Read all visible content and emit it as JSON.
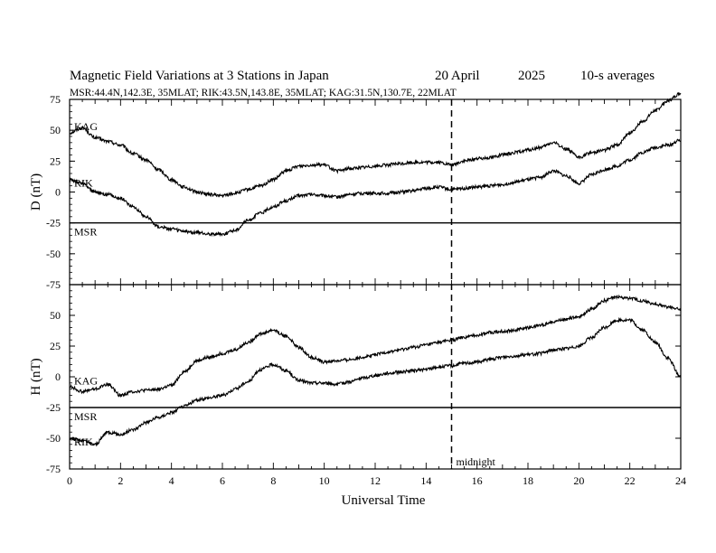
{
  "chart_data": {
    "type": "line",
    "title": "Magnetic Field Variations at 3 Stations in Japan",
    "date": "20 April",
    "year": "2025",
    "averaging": "10-s averages",
    "subtitle": "MSR:44.4N,142.3E, 35MLAT;  RIK:43.5N,143.8E, 35MLAT;  KAG:31.5N,130.7E, 22MLAT",
    "xlabel": "Universal Time",
    "xlim": [
      0,
      24
    ],
    "x_ticks": [
      0,
      2,
      4,
      6,
      8,
      10,
      12,
      14,
      16,
      18,
      20,
      22,
      24
    ],
    "annotation": {
      "x": 15,
      "label": "midnight"
    },
    "panels": [
      {
        "ylabel": "D (nT)",
        "ylim": [
          -75,
          75
        ],
        "y_ticks": [
          75,
          50,
          25,
          0,
          -25,
          -50,
          -75
        ],
        "series": [
          {
            "name": "KAG",
            "x": [
              0,
              0.5,
              1,
              1.5,
              2,
              2.5,
              3,
              3.5,
              4,
              4.5,
              5,
              5.5,
              6,
              6.5,
              7,
              7.5,
              8,
              8.5,
              9,
              9.5,
              10,
              10.5,
              11,
              11.5,
              12,
              12.5,
              13,
              13.5,
              14,
              14.5,
              15,
              15.5,
              16,
              16.5,
              17,
              17.5,
              18,
              18.5,
              19,
              19.5,
              20,
              20.5,
              21,
              21.5,
              22,
              22.5,
              23,
              23.5,
              24
            ],
            "values": [
              48,
              52,
              44,
              41,
              38,
              31,
              26,
              18,
              10,
              4,
              0,
              -2,
              -3,
              -1,
              2,
              5,
              10,
              17,
              21,
              22,
              22,
              17,
              19,
              20,
              21,
              22,
              23,
              24,
              24,
              24,
              22,
              25,
              27,
              28,
              30,
              32,
              34,
              36,
              40,
              35,
              28,
              32,
              34,
              38,
              48,
              57,
              66,
              74,
              80
            ]
          },
          {
            "name": "RIK",
            "x": [
              0,
              0.5,
              1,
              1.5,
              2,
              2.5,
              3,
              3.5,
              4,
              4.5,
              5,
              5.5,
              6,
              6.5,
              7,
              7.5,
              8,
              8.5,
              9,
              9.5,
              10,
              10.5,
              11,
              11.5,
              12,
              12.5,
              13,
              13.5,
              14,
              14.5,
              15,
              15.5,
              16,
              16.5,
              17,
              17.5,
              18,
              18.5,
              19,
              19.5,
              20,
              20.5,
              21,
              21.5,
              22,
              22.5,
              23,
              23.5,
              24
            ],
            "values": [
              10,
              7,
              0,
              -2,
              -5,
              -12,
              -20,
              -28,
              -30,
              -32,
              -33,
              -34,
              -34,
              -31,
              -23,
              -17,
              -12,
              -7,
              -3,
              -2,
              -3,
              -4,
              -2,
              -1,
              -1,
              -1,
              0,
              1,
              3,
              4,
              2,
              3,
              4,
              5,
              6,
              8,
              10,
              12,
              17,
              13,
              7,
              14,
              18,
              21,
              26,
              32,
              36,
              38,
              42
            ]
          },
          {
            "name": "MSR",
            "x": [
              0,
              24
            ],
            "values": [
              -25,
              -25
            ]
          }
        ]
      },
      {
        "ylabel": "H (nT)",
        "ylim": [
          -75,
          75
        ],
        "y_ticks": [
          75,
          50,
          25,
          0,
          -25,
          -50,
          -75
        ],
        "series": [
          {
            "name": "KAG",
            "x": [
              0,
              0.5,
              1,
              1.5,
              2,
              2.5,
              3,
              3.5,
              4,
              4.5,
              5,
              5.5,
              6,
              6.5,
              7,
              7.5,
              8,
              8.5,
              9,
              9.5,
              10,
              10.5,
              11,
              11.5,
              12,
              12.5,
              13,
              13.5,
              14,
              14.5,
              15,
              15.5,
              16,
              16.5,
              17,
              17.5,
              18,
              18.5,
              19,
              19.5,
              20,
              20.5,
              21,
              21.5,
              22,
              22.5,
              23,
              23.5,
              24
            ],
            "values": [
              -8,
              -12,
              -10,
              -6,
              -15,
              -12,
              -11,
              -10,
              -7,
              4,
              13,
              16,
              19,
              22,
              28,
              35,
              38,
              33,
              24,
              16,
              12,
              13,
              14,
              16,
              18,
              20,
              22,
              24,
              26,
              28,
              30,
              32,
              34,
              36,
              37,
              38,
              40,
              42,
              45,
              47,
              49,
              55,
              62,
              65,
              64,
              62,
              59,
              57,
              55
            ]
          },
          {
            "name": "RIK",
            "x": [
              0,
              0.5,
              1,
              1.5,
              2,
              2.5,
              3,
              3.5,
              4,
              4.5,
              5,
              5.5,
              6,
              6.5,
              7,
              7.5,
              8,
              8.5,
              9,
              9.5,
              10,
              10.5,
              11,
              11.5,
              12,
              12.5,
              13,
              13.5,
              14,
              14.5,
              15,
              15.5,
              16,
              16.5,
              17,
              17.5,
              18,
              18.5,
              19,
              19.5,
              20,
              20.5,
              21,
              21.5,
              22,
              22.5,
              23,
              23.5,
              24
            ],
            "values": [
              -50,
              -52,
              -55,
              -45,
              -47,
              -43,
              -37,
              -33,
              -29,
              -24,
              -19,
              -17,
              -15,
              -10,
              -4,
              6,
              10,
              5,
              -3,
              -5,
              -5,
              -6,
              -4,
              -1,
              1,
              3,
              4,
              5,
              6,
              8,
              9,
              11,
              12,
              14,
              16,
              17,
              18,
              19,
              22,
              23,
              25,
              32,
              40,
              46,
              46,
              38,
              28,
              15,
              0
            ]
          },
          {
            "name": "MSR",
            "x": [
              0,
              24
            ],
            "values": [
              -25,
              -25
            ]
          }
        ]
      }
    ]
  }
}
